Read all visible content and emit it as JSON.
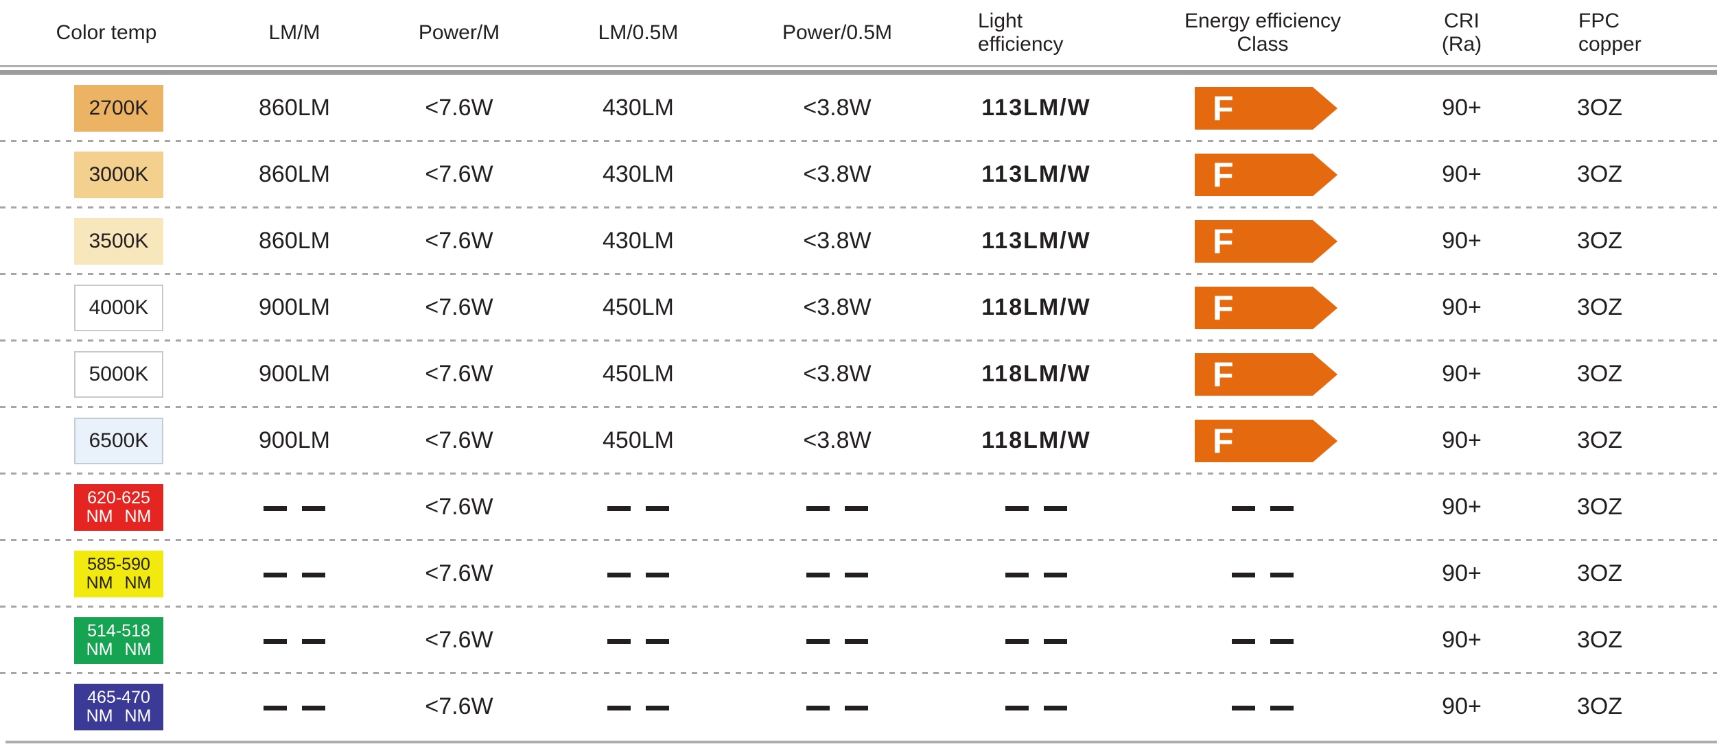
{
  "table": {
    "dash_symbol": "— —",
    "energy_arrow_color": "#e5690f",
    "headers": [
      {
        "label": "Color temp"
      },
      {
        "label": "LM/M"
      },
      {
        "label": "Power/M"
      },
      {
        "label": "LM/0.5M"
      },
      {
        "label": "Power/0.5M"
      },
      {
        "line1": "Light",
        "line2": "efficiency"
      },
      {
        "line1": "Energy efficiency",
        "line2": "Class"
      },
      {
        "line1": "CRI",
        "line2": "(Ra)"
      },
      {
        "line1": "FPC",
        "line2": "copper"
      }
    ],
    "rows": [
      {
        "color_temp": {
          "line1": "2700K",
          "bg": "#ebb363",
          "fg": "#231f20",
          "border": ""
        },
        "lm_m": "860LM",
        "power_m": "<7.6W",
        "lm_05m": "430LM",
        "power_05m": "<3.8W",
        "light_efficiency": "113LM/W",
        "energy_class": "F",
        "cri": "90+",
        "fpc_copper": "3OZ"
      },
      {
        "color_temp": {
          "line1": "3000K",
          "bg": "#f4d08f",
          "fg": "#231f20",
          "border": ""
        },
        "lm_m": "860LM",
        "power_m": "<7.6W",
        "lm_05m": "430LM",
        "power_05m": "<3.8W",
        "light_efficiency": "113LM/W",
        "energy_class": "F",
        "cri": "90+",
        "fpc_copper": "3OZ"
      },
      {
        "color_temp": {
          "line1": "3500K",
          "bg": "#f8e6bc",
          "fg": "#231f20",
          "border": ""
        },
        "lm_m": "860LM",
        "power_m": "<7.6W",
        "lm_05m": "430LM",
        "power_05m": "<3.8W",
        "light_efficiency": "113LM/W",
        "energy_class": "F",
        "cri": "90+",
        "fpc_copper": "3OZ"
      },
      {
        "color_temp": {
          "line1": "4000K",
          "bg": "#ffffff",
          "fg": "#231f20",
          "border": "#c9c9c9"
        },
        "lm_m": "900LM",
        "power_m": "<7.6W",
        "lm_05m": "450LM",
        "power_05m": "<3.8W",
        "light_efficiency": "118LM/W",
        "energy_class": "F",
        "cri": "90+",
        "fpc_copper": "3OZ"
      },
      {
        "color_temp": {
          "line1": "5000K",
          "bg": "#ffffff",
          "fg": "#231f20",
          "border": "#c9c9c9"
        },
        "lm_m": "900LM",
        "power_m": "<7.6W",
        "lm_05m": "450LM",
        "power_05m": "<3.8W",
        "light_efficiency": "118LM/W",
        "energy_class": "F",
        "cri": "90+",
        "fpc_copper": "3OZ"
      },
      {
        "color_temp": {
          "line1": "6500K",
          "bg": "#e9f1fa",
          "fg": "#231f20",
          "border": "#c3ccd4"
        },
        "lm_m": "900LM",
        "power_m": "<7.6W",
        "lm_05m": "450LM",
        "power_05m": "<3.8W",
        "light_efficiency": "118LM/W",
        "energy_class": "F",
        "cri": "90+",
        "fpc_copper": "3OZ"
      },
      {
        "color_temp": {
          "line1": "620-625",
          "line2": "NM NM",
          "bg": "#e42521",
          "fg": "#ffffff",
          "border": ""
        },
        "lm_m": "— —",
        "power_m": "<7.6W",
        "lm_05m": "— —",
        "power_05m": "— —",
        "light_efficiency": "— —",
        "energy_class": "— —",
        "cri": "90+",
        "fpc_copper": "3OZ"
      },
      {
        "color_temp": {
          "line1": "585-590",
          "line2": "NM NM",
          "bg": "#f2e90e",
          "fg": "#231f20",
          "border": ""
        },
        "lm_m": "— —",
        "power_m": "<7.6W",
        "lm_05m": "— —",
        "power_05m": "— —",
        "light_efficiency": "— —",
        "energy_class": "— —",
        "cri": "90+",
        "fpc_copper": "3OZ"
      },
      {
        "color_temp": {
          "line1": "514-518",
          "line2": "NM NM",
          "bg": "#16a452",
          "fg": "#ffffff",
          "border": ""
        },
        "lm_m": "— —",
        "power_m": "<7.6W",
        "lm_05m": "— —",
        "power_05m": "— —",
        "light_efficiency": "— —",
        "energy_class": "— —",
        "cri": "90+",
        "fpc_copper": "3OZ"
      },
      {
        "color_temp": {
          "line1": "465-470",
          "line2": "NM NM",
          "bg": "#3c3a97",
          "fg": "#ffffff",
          "border": ""
        },
        "lm_m": "— —",
        "power_m": "<7.6W",
        "lm_05m": "— —",
        "power_05m": "— —",
        "light_efficiency": "— —",
        "energy_class": "— —",
        "cri": "90+",
        "fpc_copper": "3OZ"
      }
    ]
  }
}
